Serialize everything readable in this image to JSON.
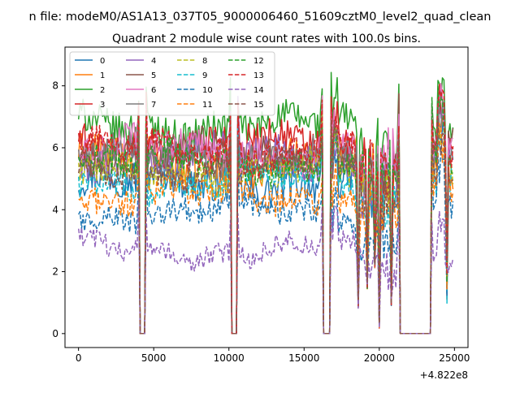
{
  "page": {
    "suptitle": "n file: modeM0/AS1A13_037T05_9000006460_51609cztM0_level2_quad_clean",
    "offset_label": "+4.822e8"
  },
  "chart_data": {
    "type": "line",
    "title": "Quadrant 2 module wise count rates with 100.0s bins.",
    "xlabel": "",
    "ylabel": "",
    "x_offset": 482200000,
    "xlim": [
      -900,
      25900
    ],
    "ylim": [
      -0.45,
      9.25
    ],
    "x_ticks": [
      0,
      5000,
      10000,
      15000,
      20000,
      25000
    ],
    "x_tick_labels": [
      "0",
      "5000",
      "10000",
      "15000",
      "20000",
      "25000"
    ],
    "y_ticks": [
      0,
      2,
      4,
      6,
      8
    ],
    "y_tick_labels": [
      "0",
      "2",
      "4",
      "6",
      "8"
    ],
    "grid": false,
    "legend_position": "upper-left",
    "legend_columns": 4,
    "x_bin_seconds": 100,
    "x_start": 0,
    "x_end": 24900,
    "gaps": [
      [
        4100,
        4400
      ],
      [
        10200,
        10500
      ],
      [
        16300,
        16700
      ],
      [
        21400,
        23400
      ]
    ],
    "dips": [
      [
        18600,
        0.8
      ],
      [
        19200,
        1.4
      ],
      [
        19700,
        2.1
      ],
      [
        20000,
        0.15
      ],
      [
        20800,
        0.9
      ]
    ],
    "series": [
      {
        "name": "0",
        "level": 4.9,
        "noise": 0.6,
        "color": "#1f77b4",
        "dash": "solid"
      },
      {
        "name": "1",
        "level": 5.6,
        "noise": 0.6,
        "color": "#ff7f0e",
        "dash": "solid"
      },
      {
        "name": "2",
        "level": 6.7,
        "noise": 0.55,
        "color": "#2ca02c",
        "dash": "solid"
      },
      {
        "name": "3",
        "level": 6.1,
        "noise": 0.6,
        "color": "#d62728",
        "dash": "solid"
      },
      {
        "name": "4",
        "level": 5.7,
        "noise": 0.6,
        "color": "#9467bd",
        "dash": "solid"
      },
      {
        "name": "5",
        "level": 5.8,
        "noise": 0.55,
        "color": "#8c564b",
        "dash": "solid"
      },
      {
        "name": "6",
        "level": 5.9,
        "noise": 0.55,
        "color": "#e377c2",
        "dash": "solid"
      },
      {
        "name": "7",
        "level": 5.7,
        "noise": 0.5,
        "color": "#7f7f7f",
        "dash": "solid"
      },
      {
        "name": "8",
        "level": 5.2,
        "noise": 0.5,
        "color": "#bcbd22",
        "dash": "dashed"
      },
      {
        "name": "9",
        "level": 4.9,
        "noise": 0.45,
        "color": "#17becf",
        "dash": "dashed"
      },
      {
        "name": "10",
        "level": 3.9,
        "noise": 0.4,
        "color": "#1f77b4",
        "dash": "dashed"
      },
      {
        "name": "11",
        "level": 4.4,
        "noise": 0.45,
        "color": "#ff7f0e",
        "dash": "dashed"
      },
      {
        "name": "12",
        "level": 5.5,
        "noise": 0.5,
        "color": "#2ca02c",
        "dash": "dashed"
      },
      {
        "name": "13",
        "level": 5.9,
        "noise": 0.5,
        "color": "#d62728",
        "dash": "dashed"
      },
      {
        "name": "14",
        "level": 2.7,
        "noise": 0.35,
        "color": "#9467bd",
        "dash": "dashed"
      },
      {
        "name": "15",
        "level": 5.3,
        "noise": 0.45,
        "color": "#8c564b",
        "dash": "dashed"
      }
    ]
  }
}
